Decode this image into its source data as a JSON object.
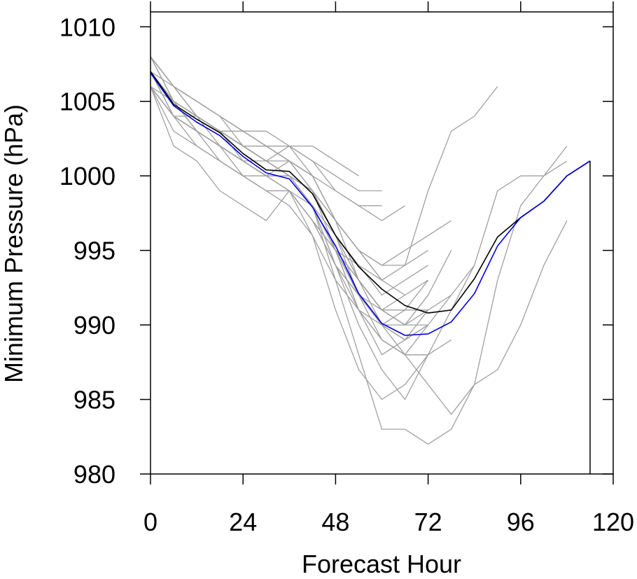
{
  "chart_data": {
    "type": "line",
    "title": "",
    "xlabel": "Forecast Hour",
    "ylabel": "Minimum Pressure (hPa)",
    "xlim": [
      0,
      120
    ],
    "ylim": [
      980,
      1011
    ],
    "x_ticks": [
      0,
      24,
      48,
      72,
      96,
      120
    ],
    "x_tick_labels": [
      "0",
      "24",
      "48",
      "72",
      "96",
      "120"
    ],
    "y_ticks": [
      980,
      985,
      990,
      995,
      1000,
      1005,
      1010
    ],
    "y_tick_labels": [
      "980",
      "985",
      "990",
      "995",
      "1000",
      "1005",
      "1010"
    ],
    "grid": false,
    "legend": "none",
    "colors": {
      "ensemble": "#a0a0a0",
      "blue_series": "#0000dd",
      "black_series": "#000000"
    },
    "series": [
      {
        "style": "black",
        "x": [
          0,
          6,
          12,
          18,
          24,
          30,
          36,
          42,
          48,
          54,
          60,
          66,
          72,
          78,
          84,
          90,
          96,
          102,
          108,
          114
        ],
        "y": [
          1007,
          1004.8,
          1003.8,
          1002.9,
          1001.5,
          1000.4,
          1000.3,
          998.8,
          996,
          993.9,
          992.4,
          991.3,
          990.8,
          991,
          993.1,
          995.9,
          997.2,
          998.3,
          1000,
          1001
        ]
      },
      {
        "style": "blue",
        "x": [
          0,
          6,
          12,
          18,
          24,
          30,
          36,
          42,
          48,
          54,
          60,
          66,
          72,
          78,
          84,
          90,
          96,
          102,
          108,
          114
        ],
        "y": [
          1006.9,
          1004.7,
          1003.6,
          1002.7,
          1001.3,
          1000.2,
          999.8,
          997.9,
          995.3,
          992.1,
          990.1,
          989.3,
          989.4,
          990.2,
          992.1,
          995.3,
          997.2,
          998.3,
          1000,
          1001
        ]
      },
      {
        "style": "ensemble",
        "x": [
          0,
          6,
          12,
          18,
          24,
          30,
          36,
          42,
          48,
          54,
          60,
          66,
          72,
          78,
          84,
          90
        ],
        "y": [
          1008,
          1006,
          1004,
          1003,
          1002,
          1001,
          1001,
          1000,
          997,
          995,
          993,
          994,
          999,
          1003,
          1004,
          1006
        ]
      },
      {
        "style": "ensemble",
        "x": [
          0,
          6,
          12,
          18,
          24,
          30,
          36,
          42,
          48,
          54,
          60,
          66,
          72,
          78,
          84,
          90,
          96,
          102,
          108
        ],
        "y": [
          1007,
          1005,
          1004,
          1003,
          1002,
          1001,
          1000,
          999,
          996,
          993,
          990,
          988,
          986,
          984,
          986,
          987,
          990,
          994,
          997
        ]
      },
      {
        "style": "ensemble",
        "x": [
          0,
          6,
          12,
          18,
          24,
          30,
          36,
          42,
          48,
          54,
          60,
          66,
          72,
          78,
          84,
          90,
          96,
          102,
          108
        ],
        "y": [
          1006,
          1004,
          1003,
          1002,
          1001,
          1000,
          1000,
          998,
          994,
          990,
          987,
          985,
          988,
          991,
          994,
          999,
          1000,
          1000,
          1001
        ]
      },
      {
        "style": "ensemble",
        "x": [
          0,
          6,
          12,
          18,
          24,
          30,
          36,
          42,
          48,
          54,
          60,
          66,
          72,
          78,
          84,
          90,
          96,
          102,
          108
        ],
        "y": [
          1007,
          1005,
          1004,
          1003,
          1002,
          1001,
          1000,
          998,
          993,
          988,
          983,
          983,
          982,
          983,
          986,
          993,
          998,
          1000,
          1002
        ]
      },
      {
        "style": "ensemble",
        "x": [
          0,
          6,
          12,
          18,
          24,
          30,
          36,
          42,
          48,
          54,
          60,
          66,
          72
        ],
        "y": [
          1006,
          1002,
          1001,
          999,
          998,
          997,
          999,
          996,
          991,
          987,
          985,
          986,
          988
        ]
      },
      {
        "style": "ensemble",
        "x": [
          0,
          6,
          12,
          18,
          24,
          30,
          36,
          42,
          48,
          54,
          60,
          66,
          72,
          78
        ],
        "y": [
          1008,
          1006,
          1005,
          1004,
          1002,
          1001,
          1002,
          1000,
          997,
          993,
          991,
          990,
          992,
          995
        ]
      },
      {
        "style": "ensemble",
        "x": [
          0,
          6,
          12,
          18,
          24,
          30,
          36,
          42,
          48,
          54,
          60,
          66,
          72
        ],
        "y": [
          1008,
          1005,
          1003,
          1002,
          1000,
          1000,
          1001,
          999,
          995,
          993,
          991,
          992,
          993
        ]
      },
      {
        "style": "ensemble",
        "x": [
          0,
          6,
          12,
          18,
          24,
          30,
          36,
          42,
          48,
          54,
          60,
          66,
          72
        ],
        "y": [
          1007,
          1005,
          1004,
          1003,
          1002,
          1001,
          1000,
          998,
          996,
          992,
          989,
          988,
          990
        ]
      },
      {
        "style": "ensemble",
        "x": [
          0,
          6,
          12,
          18,
          24,
          30,
          36,
          42,
          48,
          54,
          60,
          66,
          72,
          78,
          84
        ],
        "y": [
          1006,
          1004,
          1003,
          1001,
          1000,
          999,
          999,
          998,
          995,
          991,
          988,
          989,
          990,
          992,
          994
        ]
      },
      {
        "style": "ensemble",
        "x": [
          0,
          6,
          12,
          18,
          24,
          30,
          36,
          42,
          48,
          54,
          60,
          66,
          72
        ],
        "y": [
          1007,
          1005,
          1003,
          1002,
          1001,
          1000,
          1000,
          998,
          994,
          992,
          990,
          989,
          991
        ]
      },
      {
        "style": "ensemble",
        "x": [
          0,
          6,
          12,
          18,
          24,
          30,
          36,
          42,
          48,
          54,
          60,
          66,
          72
        ],
        "y": [
          1008,
          1006,
          1005,
          1004,
          1003,
          1002,
          1001,
          999,
          996,
          994,
          992,
          993,
          994
        ]
      },
      {
        "style": "ensemble",
        "x": [
          0,
          6,
          12,
          18,
          24,
          30,
          36,
          42,
          48,
          54,
          60,
          66,
          72
        ],
        "y": [
          1007,
          1004,
          1003,
          1002,
          1001,
          1000,
          999,
          997,
          994,
          991,
          989,
          988,
          988
        ]
      },
      {
        "style": "ensemble",
        "x": [
          0,
          6,
          12,
          18,
          24,
          30,
          36,
          42,
          48,
          54,
          60,
          66
        ],
        "y": [
          1006,
          1004,
          1003,
          1002,
          1001,
          1001,
          1000,
          999,
          997,
          995,
          993,
          992
        ]
      },
      {
        "style": "ensemble",
        "x": [
          0,
          6,
          12,
          18,
          24,
          30,
          36,
          42,
          48,
          54,
          60,
          66,
          72
        ],
        "y": [
          1007,
          1005,
          1004,
          1002,
          1001,
          1000,
          999,
          997,
          995,
          992,
          990,
          989,
          990
        ]
      },
      {
        "style": "ensemble",
        "x": [
          0,
          6,
          12,
          18,
          24,
          30,
          36,
          42,
          48,
          54,
          60,
          66,
          72
        ],
        "y": [
          1008,
          1006,
          1004,
          1003,
          1002,
          1001,
          1000,
          999,
          996,
          993,
          991,
          990,
          991
        ]
      },
      {
        "style": "ensemble",
        "x": [
          0,
          6,
          12,
          18,
          24,
          30,
          36,
          42,
          48,
          54,
          60,
          66,
          72
        ],
        "y": [
          1007,
          1006,
          1005,
          1004,
          1003,
          1002,
          1001,
          1000,
          997,
          995,
          994,
          994,
          995
        ]
      },
      {
        "style": "ensemble",
        "x": [
          0,
          6,
          12,
          18,
          24,
          30,
          36,
          42,
          48,
          54,
          60,
          66
        ],
        "y": [
          1006,
          1005,
          1004,
          1003,
          1002,
          1002,
          1002,
          1001,
          999,
          998,
          997,
          998
        ]
      },
      {
        "style": "ensemble",
        "x": [
          0,
          6,
          12,
          18,
          24,
          30,
          36,
          42,
          48,
          54,
          60
        ],
        "y": [
          1007,
          1005,
          1004,
          1003,
          1003,
          1002,
          1002,
          1001,
          1000,
          999,
          999
        ]
      },
      {
        "style": "ensemble",
        "x": [
          0,
          6,
          12,
          18,
          24,
          30,
          36,
          42,
          48,
          54
        ],
        "y": [
          1008,
          1006,
          1005,
          1004,
          1003,
          1003,
          1002,
          1002,
          1001,
          1000
        ]
      },
      {
        "style": "ensemble",
        "x": [
          0,
          6,
          12,
          18,
          24,
          30,
          36,
          42,
          48,
          54,
          60
        ],
        "y": [
          1007,
          1004,
          1004,
          1003,
          1002,
          1002,
          1001,
          1000,
          999,
          998,
          998
        ]
      },
      {
        "style": "ensemble",
        "x": [
          0,
          6,
          12,
          18,
          24,
          30,
          36,
          42,
          48,
          54,
          60,
          66,
          72
        ],
        "y": [
          1006,
          1004,
          1002,
          1001,
          1000,
          999,
          998,
          996,
          993,
          991,
          990,
          991,
          993
        ]
      },
      {
        "style": "ensemble",
        "x": [
          0,
          6,
          12,
          18,
          24,
          30,
          36,
          42,
          48,
          54,
          60,
          66,
          72
        ],
        "y": [
          1007,
          1005,
          1004,
          1003,
          1001,
          1000,
          1000,
          998,
          995,
          992,
          990,
          990,
          992
        ]
      },
      {
        "style": "ensemble",
        "x": [
          0,
          6,
          12,
          18,
          24,
          30,
          36,
          42,
          48,
          54,
          60,
          66,
          72,
          78
        ],
        "y": [
          1006,
          1004,
          1003,
          1002,
          1001,
          1000,
          999,
          997,
          994,
          992,
          991,
          991,
          991,
          992
        ]
      },
      {
        "style": "ensemble",
        "x": [
          0,
          6,
          12,
          18,
          24,
          30,
          36,
          42,
          48,
          54,
          60,
          66,
          72,
          78
        ],
        "y": [
          1007,
          1005,
          1003,
          1002,
          1001,
          1000,
          1000,
          998,
          995,
          991,
          989,
          988,
          988,
          989
        ]
      },
      {
        "style": "ensemble",
        "x": [
          0,
          6,
          12,
          18,
          24,
          30,
          36,
          42,
          48,
          54,
          60,
          66,
          72
        ],
        "y": [
          1008,
          1005,
          1004,
          1003,
          1002,
          1001,
          1000,
          998,
          995,
          993,
          991,
          990,
          990
        ]
      },
      {
        "style": "ensemble",
        "x": [
          0,
          6,
          12,
          18,
          24,
          30,
          36,
          42,
          48,
          54,
          60
        ],
        "y": [
          1006,
          1003,
          1002,
          1001,
          1000,
          999,
          999,
          997,
          995,
          994,
          993
        ]
      },
      {
        "style": "ensemble",
        "x": [
          0,
          6,
          12,
          18,
          24,
          30,
          36,
          42,
          48,
          54,
          60,
          66,
          72,
          78
        ],
        "y": [
          1007,
          1005,
          1004,
          1003,
          1002,
          1001,
          1000,
          999,
          997,
          995,
          994,
          995,
          996,
          997
        ]
      }
    ]
  }
}
